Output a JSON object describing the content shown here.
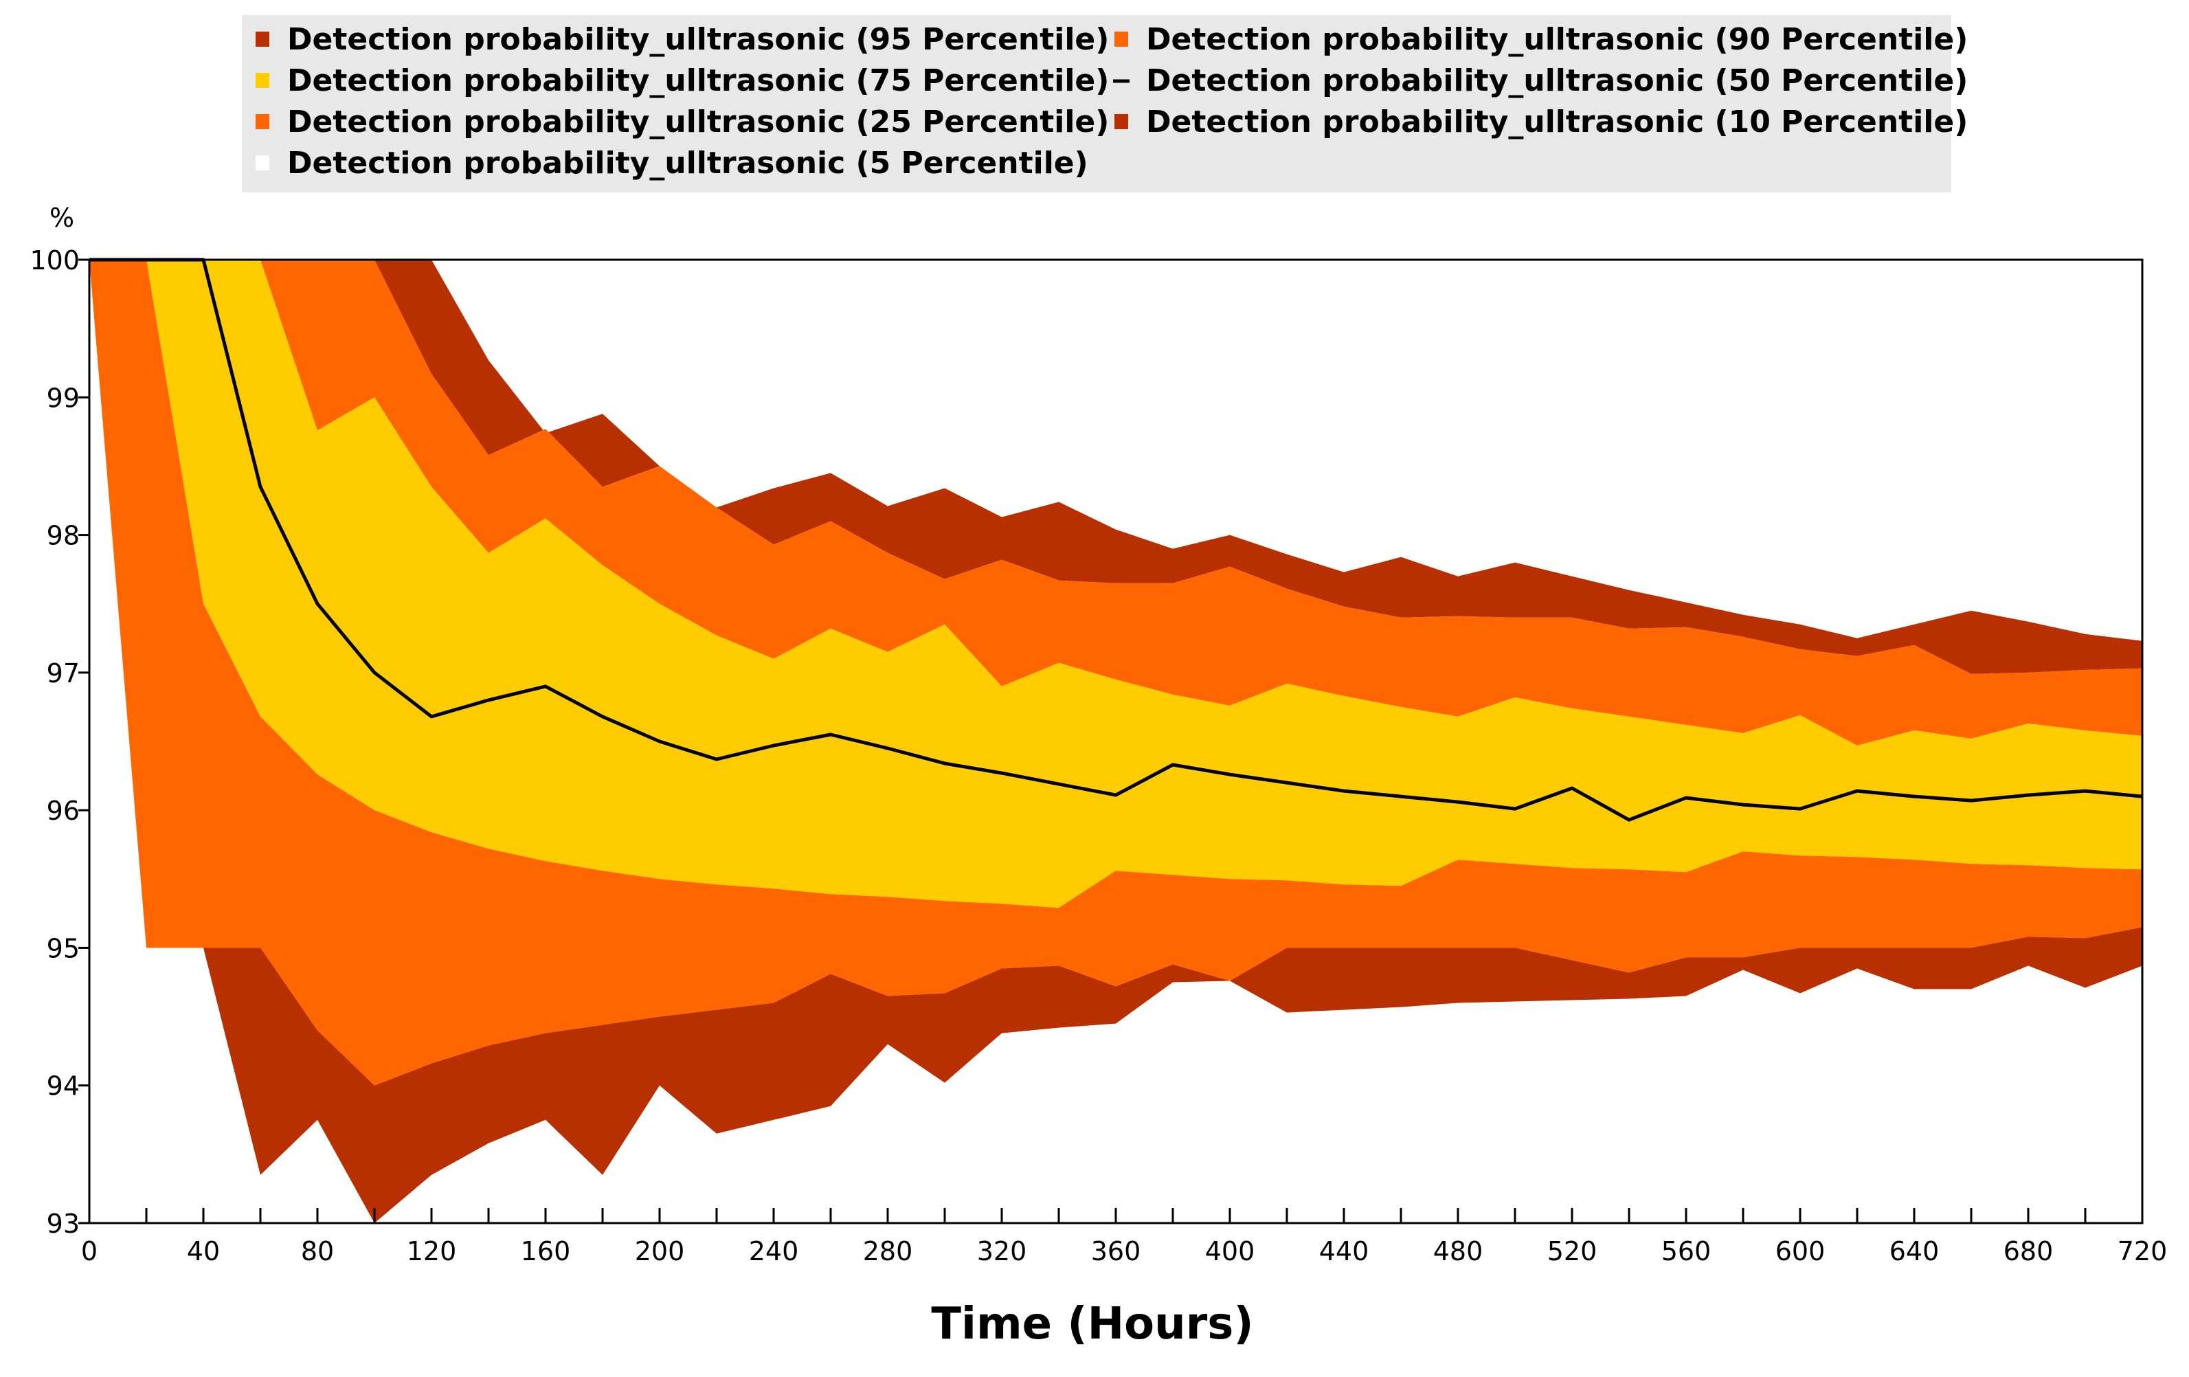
{
  "chart_data": {
    "type": "area",
    "title": "",
    "xlabel": "Time (Hours)",
    "ylabel": "%",
    "xlim": [
      0,
      720
    ],
    "ylim": [
      93,
      100
    ],
    "x_ticks": [
      0,
      40,
      80,
      120,
      160,
      200,
      240,
      280,
      320,
      360,
      400,
      440,
      480,
      520,
      560,
      600,
      640,
      680,
      720
    ],
    "y_ticks": [
      93,
      94,
      95,
      96,
      97,
      98,
      99,
      100
    ],
    "x": [
      0,
      20,
      40,
      60,
      80,
      100,
      120,
      140,
      160,
      180,
      200,
      220,
      240,
      260,
      280,
      300,
      320,
      340,
      360,
      380,
      400,
      420,
      440,
      460,
      480,
      500,
      520,
      540,
      560,
      580,
      600,
      620,
      640,
      660,
      680,
      700,
      720
    ],
    "series": [
      {
        "name": "Detection probability_ulltrasonic (95 Percentile)",
        "color": "#B83000",
        "values": [
          100,
          100,
          100,
          100,
          100,
          100,
          100,
          99.27,
          98.74,
          98.88,
          98.5,
          98.2,
          98.34,
          98.45,
          98.21,
          98.34,
          98.13,
          98.24,
          98.04,
          97.9,
          98.0,
          97.86,
          97.73,
          97.84,
          97.7,
          97.8,
          97.7,
          97.6,
          97.51,
          97.42,
          97.35,
          97.25,
          97.35,
          97.45,
          97.37,
          97.28,
          97.23
        ]
      },
      {
        "name": "Detection probability_ulltrasonic (90 Percentile)",
        "color": "#FF6600",
        "values": [
          100,
          100,
          100,
          100,
          100,
          100,
          99.17,
          98.58,
          98.77,
          98.35,
          98.5,
          98.2,
          97.93,
          98.1,
          97.87,
          97.68,
          97.82,
          97.67,
          97.65,
          97.65,
          97.77,
          97.61,
          97.48,
          97.4,
          97.41,
          97.4,
          97.4,
          97.32,
          97.33,
          97.26,
          97.17,
          97.12,
          97.2,
          96.99,
          97.0,
          97.02,
          97.03
        ]
      },
      {
        "name": "Detection probability_ulltrasonic (75 Percentile)",
        "color": "#FFCC00",
        "values": [
          100,
          100,
          100,
          100,
          98.76,
          99.0,
          98.35,
          97.87,
          98.12,
          97.78,
          97.5,
          97.27,
          97.1,
          97.32,
          97.15,
          97.35,
          96.9,
          97.07,
          96.95,
          96.84,
          96.76,
          96.92,
          96.83,
          96.75,
          96.68,
          96.82,
          96.74,
          96.68,
          96.62,
          96.56,
          96.69,
          96.47,
          96.58,
          96.52,
          96.63,
          96.58,
          96.54
        ]
      },
      {
        "name": "Detection probability_ulltrasonic (50 Percentile)",
        "color": "#000000",
        "values": [
          100,
          100,
          100,
          98.35,
          97.5,
          97.0,
          96.68,
          96.8,
          96.9,
          96.68,
          96.5,
          96.37,
          96.47,
          96.55,
          96.45,
          96.34,
          96.27,
          96.19,
          96.11,
          96.33,
          96.26,
          96.2,
          96.14,
          96.1,
          96.06,
          96.01,
          96.16,
          95.93,
          96.09,
          96.04,
          96.01,
          96.14,
          96.1,
          96.07,
          96.11,
          96.14,
          96.1
        ]
      },
      {
        "name": "Detection probability_ulltrasonic (25 Percentile)",
        "color": "#FF6600",
        "values": [
          100,
          100,
          97.5,
          96.68,
          96.26,
          96.0,
          95.84,
          95.72,
          95.63,
          95.56,
          95.5,
          95.46,
          95.43,
          95.39,
          95.37,
          95.34,
          95.32,
          95.29,
          95.56,
          95.53,
          95.5,
          95.49,
          95.46,
          95.45,
          95.64,
          95.61,
          95.58,
          95.57,
          95.55,
          95.7,
          95.67,
          95.66,
          95.64,
          95.61,
          95.6,
          95.58,
          95.57
        ]
      },
      {
        "name": "Detection probability_ulltrasonic (10 Percentile)",
        "color": "#B83000",
        "values": [
          100,
          95.0,
          95.0,
          95.0,
          94.4,
          94.0,
          94.16,
          94.29,
          94.38,
          94.44,
          94.5,
          94.55,
          94.6,
          94.81,
          94.65,
          94.67,
          94.85,
          94.87,
          94.72,
          94.88,
          94.76,
          95.0,
          95.0,
          95.0,
          95.0,
          95.0,
          94.91,
          94.82,
          94.93,
          94.93,
          95.0,
          95.0,
          95.0,
          95.0,
          95.08,
          95.07,
          95.15
        ]
      },
      {
        "name": "Detection probability_ulltrasonic (5 Percentile)",
        "color": "#FFFFFF",
        "values": [
          100,
          95.0,
          95.0,
          93.35,
          93.75,
          93.0,
          93.35,
          93.58,
          93.75,
          93.35,
          94.0,
          93.65,
          93.75,
          93.85,
          94.3,
          94.02,
          94.38,
          94.42,
          94.45,
          94.75,
          94.76,
          94.53,
          94.55,
          94.57,
          94.6,
          94.61,
          94.62,
          94.63,
          94.65,
          94.84,
          94.67,
          94.85,
          94.7,
          94.7,
          94.87,
          94.71,
          94.87
        ]
      }
    ],
    "legend_position": "top-center",
    "grid": false
  }
}
